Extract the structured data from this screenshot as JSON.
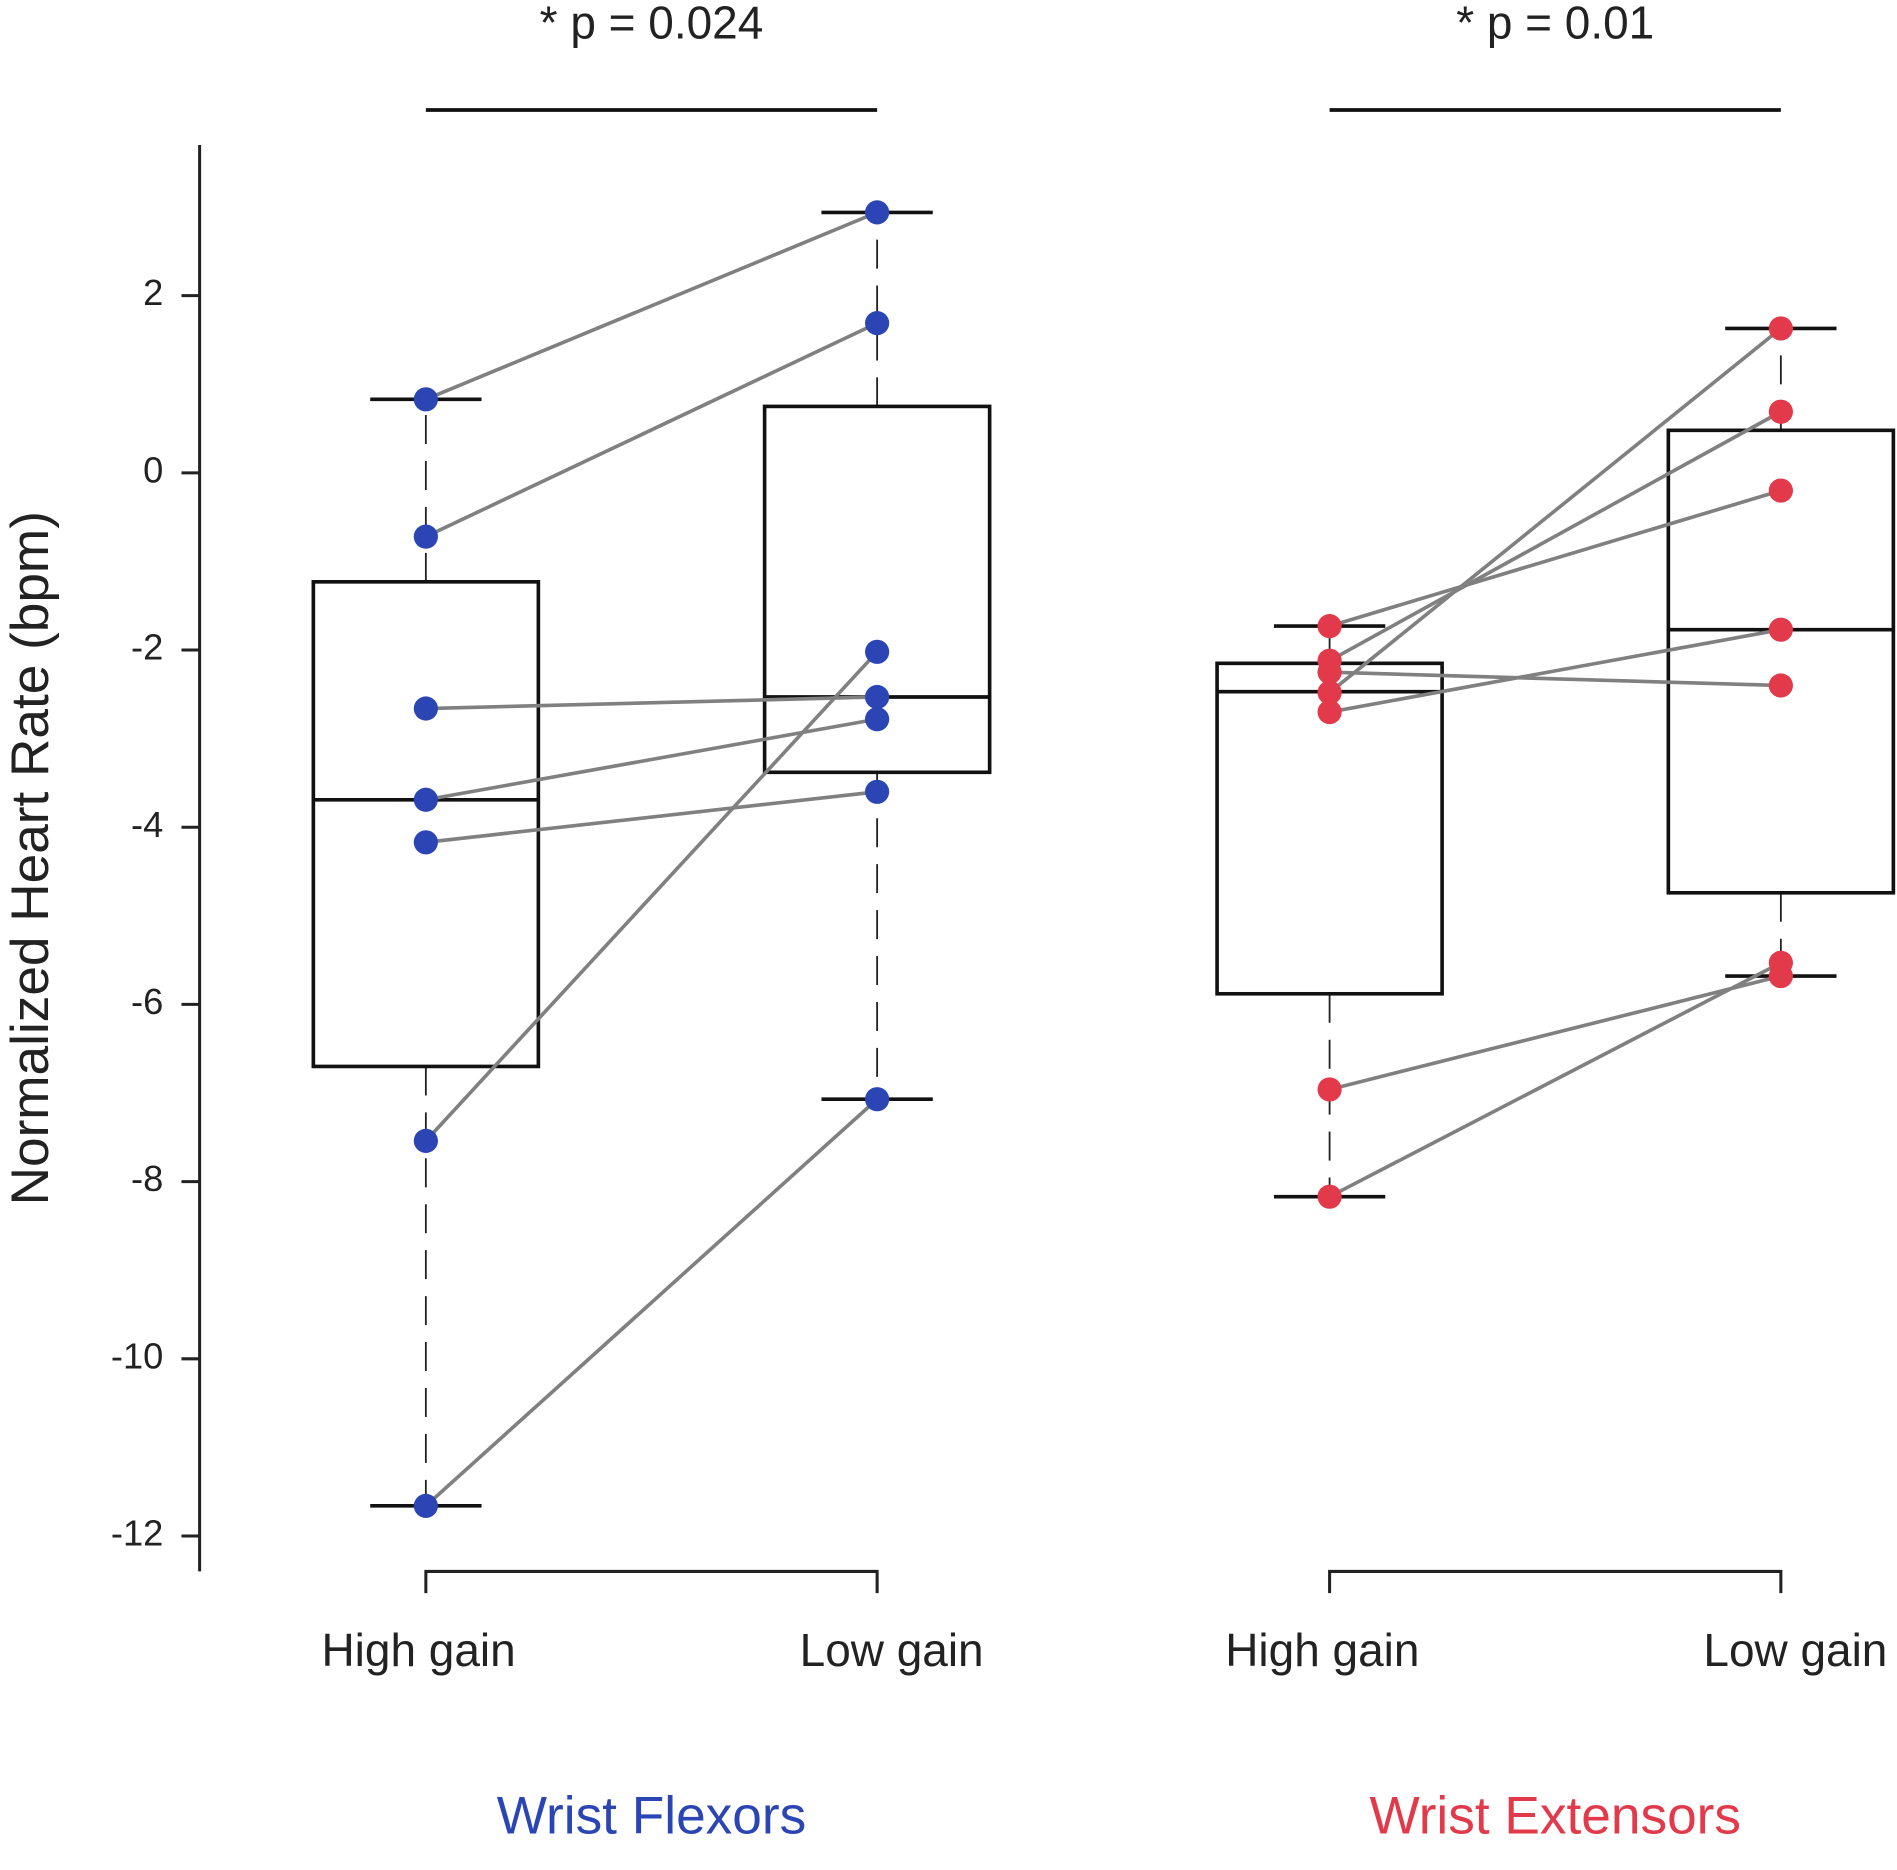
{
  "chart_data": {
    "type": "box",
    "y_label": "Normalized Heart Rate (bpm)",
    "ylim": [
      -12.4,
      3.7
    ],
    "yticks": [
      -12,
      -10,
      -8,
      -6,
      -4,
      -2,
      0,
      2
    ],
    "line_color": "#808080",
    "groups": [
      {
        "name": "Wrist Flexors",
        "color": "#2b45b5",
        "annotation": "* p = 0.024",
        "categories": [
          "High gain",
          "Low gain"
        ],
        "boxes": [
          {
            "min": -11.66,
            "q1": -6.7,
            "median": -3.69,
            "q3": -1.23,
            "max": 0.83
          },
          {
            "min": -7.07,
            "q1": -3.38,
            "median": -2.53,
            "q3": 0.75,
            "max": 2.94
          }
        ],
        "points": [
          [
            0.83,
            -0.72,
            -2.66,
            -3.69,
            -4.17,
            -7.54,
            -11.66
          ],
          [
            2.94,
            1.69,
            -2.53,
            -2.78,
            -3.6,
            -2.02,
            -7.07
          ]
        ]
      },
      {
        "name": "Wrist Extensors",
        "color": "#e23a4b",
        "annotation": "* p = 0.01",
        "categories": [
          "High gain",
          "Low gain"
        ],
        "boxes": [
          {
            "min": -8.17,
            "q1": -5.88,
            "median": -2.47,
            "q3": -2.15,
            "max": -1.73
          },
          {
            "min": -5.68,
            "q1": -4.74,
            "median": -1.77,
            "q3": 0.48,
            "max": 1.63
          }
        ],
        "points": [
          [
            -1.73,
            -2.12,
            -2.25,
            -2.48,
            -2.7,
            -6.96,
            -8.17
          ],
          [
            -0.2,
            0.69,
            -2.4,
            1.63,
            -1.77,
            -5.68,
            -5.53
          ]
        ]
      }
    ]
  }
}
